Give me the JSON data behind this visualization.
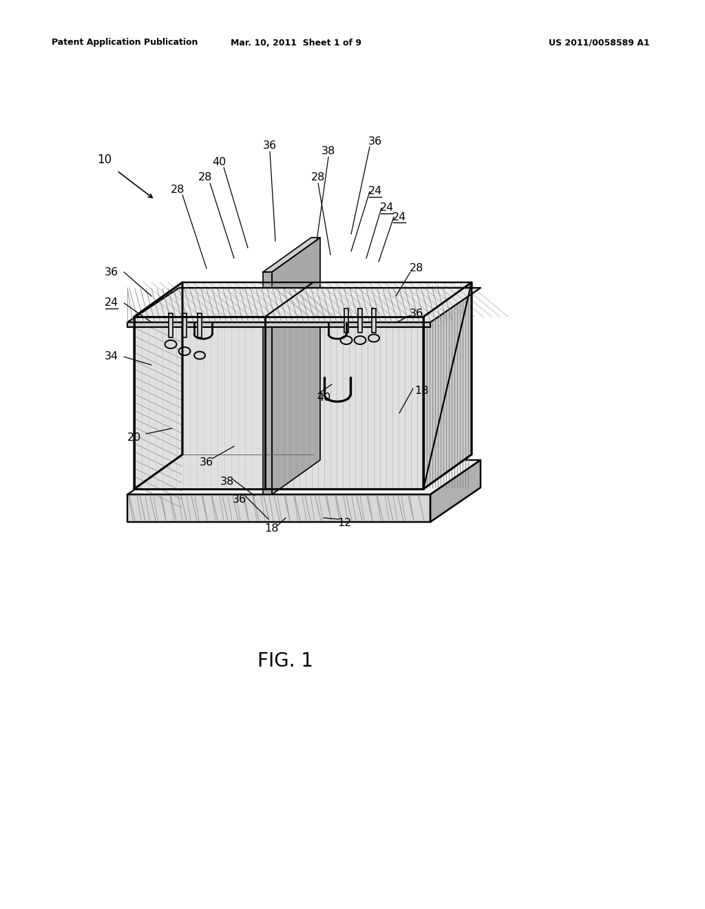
{
  "bg_color": "#ffffff",
  "line_color": "#000000",
  "header_left": "Patent Application Publication",
  "header_center": "Mar. 10, 2011  Sheet 1 of 9",
  "header_right": "US 2011/0058589 A1",
  "figure_label": "FIG. 1",
  "gray_light": "#f0f0f0",
  "gray_mid": "#d8d8d8",
  "gray_dark": "#b0b0b0",
  "gray_face": "#e4e4e4",
  "hatch_color": "#888888",
  "lw_main": 1.6,
  "lw_thick": 2.0,
  "lw_thin": 0.7
}
